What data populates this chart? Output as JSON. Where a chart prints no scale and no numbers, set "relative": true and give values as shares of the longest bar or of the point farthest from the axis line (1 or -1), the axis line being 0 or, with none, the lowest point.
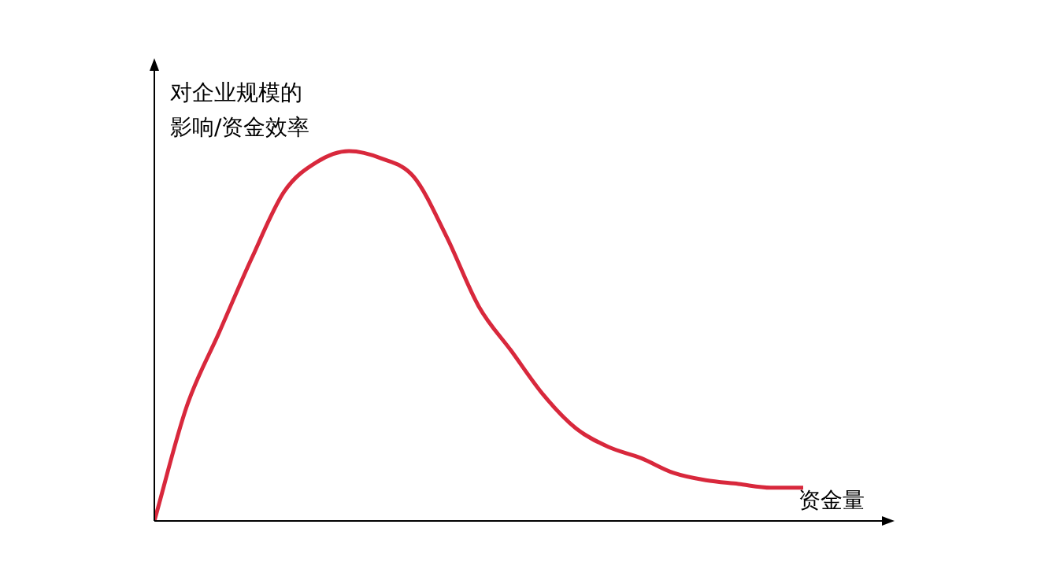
{
  "chart_data": {
    "type": "line",
    "relative": true,
    "xlabel": "资金量",
    "ylabel": "对企业规模的影响/资金效率",
    "categories": [
      null,
      null,
      null,
      null,
      null,
      null,
      null,
      null,
      null,
      null,
      null,
      null,
      null,
      null,
      null,
      null,
      null,
      null,
      null,
      null,
      null
    ],
    "series": [
      {
        "color": "#d8283c",
        "values": [
          0,
          0.31,
          0.51,
          0.71,
          0.89,
          0.97,
          1.0,
          0.98,
          0.93,
          0.77,
          0.58,
          0.46,
          0.34,
          0.25,
          0.2,
          0.17,
          0.13,
          0.11,
          0.1,
          0.09,
          0.09
        ]
      }
    ],
    "marker": "none",
    "legend": false
  }
}
